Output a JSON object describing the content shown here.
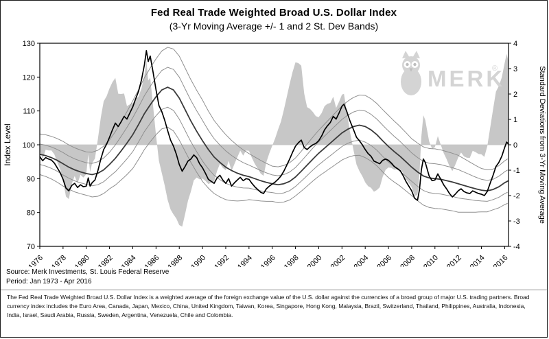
{
  "watermark": {
    "text": "MERK",
    "reg": "®"
  },
  "footer": {
    "source": "Source: Merk Investments, St. Louis Federal Reserve",
    "period": "Period: Jan 1973 - Apr 2016",
    "note": "The Fed Real Trade Weighted Broad U.S. Dollar Index is a weighted average of the foreign exchange value of the U.S. dollar against the currencies of a broad group of major U.S. trading partners. Broad currency index includes the Euro Area, Canada, Japan, Mexico, China, United Kingdom, Taiwan, Korea, Singapore, Hong Kong, Malaysia, Brazil, Switzerland, Thailand, Philippines, Australia, Indonesia, India, Israel, Saudi Arabia, Russia, Sweden, Argentina, Venezuela, Chile and Colombia."
  },
  "chart_data": {
    "type": "line",
    "title": "Fed Real Trade Weighted Broad U.S. Dollar Index",
    "subtitle": "(3-Yr Moving Average +/- 1 and 2 St. Dev Bands)",
    "left_axis": {
      "label": "Index Level",
      "min": 70,
      "max": 130,
      "ticks": [
        70,
        80,
        90,
        100,
        110,
        120,
        130
      ]
    },
    "right_axis": {
      "label": "Standard Deviations from 3-Yr Moving Average",
      "min": -4,
      "max": 4,
      "ticks": [
        -4,
        -3,
        -2,
        -1,
        0,
        1,
        2,
        3,
        4
      ]
    },
    "x_axis": {
      "min": 1976,
      "max": 2016.33,
      "ticks": [
        1976,
        1978,
        1980,
        1982,
        1984,
        1986,
        1988,
        1990,
        1992,
        1994,
        1996,
        1998,
        2000,
        2002,
        2004,
        2006,
        2008,
        2010,
        2012,
        2014,
        2016
      ]
    },
    "colors": {
      "index": "#000000",
      "moving_average": "#3a3a3a",
      "bands": "#8f8f8f",
      "deviation_fill": "#c7c7c7",
      "zero_line": "#cfcfcf",
      "watermark": "#d4d4d4"
    },
    "bands": {
      "multipliers": [
        2,
        1,
        -1,
        -2
      ]
    },
    "deviation_area": {
      "axis": "right",
      "derived": "(index - moving_average) / stdev"
    },
    "series": [
      {
        "name": "index",
        "points": [
          [
            1976.0,
            96.5
          ],
          [
            1976.25,
            95.3
          ],
          [
            1976.5,
            96.2
          ],
          [
            1976.75,
            95.8
          ],
          [
            1977.0,
            95.5
          ],
          [
            1977.25,
            94.6
          ],
          [
            1977.5,
            93.2
          ],
          [
            1977.75,
            91.8
          ],
          [
            1978.0,
            89.8
          ],
          [
            1978.25,
            87.2
          ],
          [
            1978.5,
            86.4
          ],
          [
            1978.75,
            88.0
          ],
          [
            1979.0,
            88.6
          ],
          [
            1979.25,
            87.4
          ],
          [
            1979.5,
            88.2
          ],
          [
            1979.75,
            87.6
          ],
          [
            1980.0,
            87.8
          ],
          [
            1980.17,
            90.2
          ],
          [
            1980.33,
            87.8
          ],
          [
            1980.5,
            88.8
          ],
          [
            1980.75,
            89.6
          ],
          [
            1981.0,
            92.4
          ],
          [
            1981.25,
            95.8
          ],
          [
            1981.5,
            98.6
          ],
          [
            1981.75,
            100.2
          ],
          [
            1982.0,
            102.2
          ],
          [
            1982.25,
            104.4
          ],
          [
            1982.5,
            106.4
          ],
          [
            1982.75,
            105.4
          ],
          [
            1983.0,
            106.8
          ],
          [
            1983.25,
            108.4
          ],
          [
            1983.5,
            107.6
          ],
          [
            1983.75,
            109.4
          ],
          [
            1984.0,
            111.2
          ],
          [
            1984.25,
            113.6
          ],
          [
            1984.5,
            115.8
          ],
          [
            1984.75,
            119.2
          ],
          [
            1985.0,
            123.6
          ],
          [
            1985.17,
            127.8
          ],
          [
            1985.33,
            124.6
          ],
          [
            1985.5,
            126.2
          ],
          [
            1985.75,
            121.4
          ],
          [
            1986.0,
            116.2
          ],
          [
            1986.25,
            111.6
          ],
          [
            1986.5,
            109.8
          ],
          [
            1986.75,
            107.2
          ],
          [
            1987.0,
            104.2
          ],
          [
            1987.25,
            101.4
          ],
          [
            1987.5,
            99.6
          ],
          [
            1987.75,
            97.2
          ],
          [
            1988.0,
            94.2
          ],
          [
            1988.25,
            92.2
          ],
          [
            1988.5,
            93.6
          ],
          [
            1988.75,
            95.2
          ],
          [
            1989.0,
            95.8
          ],
          [
            1989.25,
            97.0
          ],
          [
            1989.5,
            96.2
          ],
          [
            1989.75,
            94.4
          ],
          [
            1990.0,
            93.2
          ],
          [
            1990.25,
            91.6
          ],
          [
            1990.5,
            89.8
          ],
          [
            1990.75,
            89.2
          ],
          [
            1991.0,
            88.6
          ],
          [
            1991.25,
            90.2
          ],
          [
            1991.5,
            91.0
          ],
          [
            1991.75,
            89.6
          ],
          [
            1992.0,
            88.6
          ],
          [
            1992.25,
            90.0
          ],
          [
            1992.5,
            87.8
          ],
          [
            1992.75,
            88.8
          ],
          [
            1993.0,
            89.6
          ],
          [
            1993.25,
            90.4
          ],
          [
            1993.5,
            89.4
          ],
          [
            1993.75,
            90.0
          ],
          [
            1994.0,
            89.8
          ],
          [
            1994.25,
            88.6
          ],
          [
            1994.5,
            87.6
          ],
          [
            1994.75,
            86.8
          ],
          [
            1995.0,
            86.0
          ],
          [
            1995.25,
            85.6
          ],
          [
            1995.5,
            87.0
          ],
          [
            1995.75,
            87.8
          ],
          [
            1996.0,
            88.4
          ],
          [
            1996.25,
            89.0
          ],
          [
            1996.5,
            89.8
          ],
          [
            1996.75,
            90.8
          ],
          [
            1997.0,
            92.2
          ],
          [
            1997.25,
            94.0
          ],
          [
            1997.5,
            95.8
          ],
          [
            1997.75,
            97.8
          ],
          [
            1998.0,
            99.6
          ],
          [
            1998.25,
            100.6
          ],
          [
            1998.5,
            101.4
          ],
          [
            1998.75,
            99.2
          ],
          [
            1999.0,
            98.6
          ],
          [
            1999.25,
            99.4
          ],
          [
            1999.5,
            100.0
          ],
          [
            1999.75,
            100.4
          ],
          [
            2000.0,
            101.2
          ],
          [
            2000.25,
            102.6
          ],
          [
            2000.5,
            104.4
          ],
          [
            2000.75,
            105.6
          ],
          [
            2001.0,
            106.6
          ],
          [
            2001.25,
            108.4
          ],
          [
            2001.5,
            107.6
          ],
          [
            2001.75,
            109.4
          ],
          [
            2002.0,
            111.4
          ],
          [
            2002.17,
            112.0
          ],
          [
            2002.42,
            109.8
          ],
          [
            2002.67,
            107.2
          ],
          [
            2003.0,
            104.4
          ],
          [
            2003.25,
            102.2
          ],
          [
            2003.5,
            101.2
          ],
          [
            2003.75,
            100.0
          ],
          [
            2004.0,
            98.6
          ],
          [
            2004.25,
            97.4
          ],
          [
            2004.5,
            96.6
          ],
          [
            2004.75,
            95.2
          ],
          [
            2005.0,
            94.8
          ],
          [
            2005.25,
            94.4
          ],
          [
            2005.5,
            95.4
          ],
          [
            2005.75,
            95.8
          ],
          [
            2006.0,
            95.4
          ],
          [
            2006.25,
            94.6
          ],
          [
            2006.5,
            93.6
          ],
          [
            2006.75,
            93.0
          ],
          [
            2007.0,
            92.4
          ],
          [
            2007.25,
            91.0
          ],
          [
            2007.5,
            89.2
          ],
          [
            2007.75,
            87.8
          ],
          [
            2008.0,
            86.4
          ],
          [
            2008.25,
            84.2
          ],
          [
            2008.5,
            83.6
          ],
          [
            2008.67,
            86.8
          ],
          [
            2008.83,
            92.6
          ],
          [
            2009.0,
            95.8
          ],
          [
            2009.17,
            94.8
          ],
          [
            2009.33,
            92.8
          ],
          [
            2009.5,
            90.8
          ],
          [
            2009.75,
            89.4
          ],
          [
            2010.0,
            89.6
          ],
          [
            2010.25,
            91.4
          ],
          [
            2010.5,
            89.8
          ],
          [
            2010.75,
            88.2
          ],
          [
            2011.0,
            87.0
          ],
          [
            2011.25,
            85.6
          ],
          [
            2011.5,
            84.6
          ],
          [
            2011.75,
            85.4
          ],
          [
            2012.0,
            86.4
          ],
          [
            2012.25,
            87.0
          ],
          [
            2012.5,
            86.2
          ],
          [
            2012.75,
            85.8
          ],
          [
            2013.0,
            85.6
          ],
          [
            2013.25,
            86.4
          ],
          [
            2013.5,
            86.0
          ],
          [
            2013.75,
            85.6
          ],
          [
            2014.0,
            85.4
          ],
          [
            2014.25,
            85.0
          ],
          [
            2014.5,
            86.2
          ],
          [
            2014.75,
            88.6
          ],
          [
            2015.0,
            91.0
          ],
          [
            2015.25,
            93.6
          ],
          [
            2015.5,
            94.8
          ],
          [
            2015.75,
            96.6
          ],
          [
            2016.0,
            99.2
          ],
          [
            2016.17,
            100.8
          ],
          [
            2016.33,
            100.2
          ]
        ]
      },
      {
        "name": "moving_average_3yr",
        "points": [
          [
            1976.0,
            97.2
          ],
          [
            1976.5,
            96.8
          ],
          [
            1977.0,
            96.2
          ],
          [
            1977.5,
            95.4
          ],
          [
            1978.0,
            94.4
          ],
          [
            1978.5,
            93.4
          ],
          [
            1979.0,
            92.6
          ],
          [
            1979.5,
            92.0
          ],
          [
            1980.0,
            91.5
          ],
          [
            1980.5,
            91.2
          ],
          [
            1981.0,
            91.6
          ],
          [
            1981.5,
            92.6
          ],
          [
            1982.0,
            94.2
          ],
          [
            1982.5,
            96.0
          ],
          [
            1983.0,
            98.2
          ],
          [
            1983.5,
            100.5
          ],
          [
            1984.0,
            103.0
          ],
          [
            1984.5,
            106.0
          ],
          [
            1985.0,
            109.2
          ],
          [
            1985.5,
            111.8
          ],
          [
            1986.0,
            114.2
          ],
          [
            1986.5,
            116.2
          ],
          [
            1987.0,
            117.0
          ],
          [
            1987.5,
            116.2
          ],
          [
            1988.0,
            113.8
          ],
          [
            1988.5,
            110.4
          ],
          [
            1989.0,
            107.0
          ],
          [
            1989.5,
            104.0
          ],
          [
            1990.0,
            101.2
          ],
          [
            1990.5,
            98.6
          ],
          [
            1991.0,
            96.4
          ],
          [
            1991.5,
            94.8
          ],
          [
            1992.0,
            93.4
          ],
          [
            1992.5,
            92.4
          ],
          [
            1993.0,
            91.6
          ],
          [
            1993.5,
            91.0
          ],
          [
            1994.0,
            90.6
          ],
          [
            1994.5,
            90.0
          ],
          [
            1995.0,
            89.4
          ],
          [
            1995.5,
            88.9
          ],
          [
            1996.0,
            88.5
          ],
          [
            1996.5,
            88.2
          ],
          [
            1997.0,
            88.5
          ],
          [
            1997.5,
            89.2
          ],
          [
            1998.0,
            90.5
          ],
          [
            1998.5,
            92.2
          ],
          [
            1999.0,
            94.0
          ],
          [
            1999.5,
            95.8
          ],
          [
            2000.0,
            97.5
          ],
          [
            2000.5,
            99.0
          ],
          [
            2001.0,
            100.5
          ],
          [
            2001.5,
            102.0
          ],
          [
            2002.0,
            103.5
          ],
          [
            2002.5,
            104.6
          ],
          [
            2003.0,
            105.4
          ],
          [
            2003.5,
            105.8
          ],
          [
            2004.0,
            105.4
          ],
          [
            2004.5,
            104.4
          ],
          [
            2005.0,
            103.0
          ],
          [
            2005.5,
            101.2
          ],
          [
            2006.0,
            99.5
          ],
          [
            2006.5,
            98.0
          ],
          [
            2007.0,
            96.6
          ],
          [
            2007.5,
            95.0
          ],
          [
            2008.0,
            93.4
          ],
          [
            2008.5,
            92.0
          ],
          [
            2009.0,
            90.8
          ],
          [
            2009.5,
            90.2
          ],
          [
            2010.0,
            90.0
          ],
          [
            2010.5,
            89.8
          ],
          [
            2011.0,
            89.4
          ],
          [
            2011.5,
            89.0
          ],
          [
            2012.0,
            88.5
          ],
          [
            2012.5,
            88.0
          ],
          [
            2013.0,
            87.5
          ],
          [
            2013.5,
            87.0
          ],
          [
            2014.0,
            86.6
          ],
          [
            2014.5,
            86.4
          ],
          [
            2015.0,
            86.8
          ],
          [
            2015.5,
            87.6
          ],
          [
            2016.0,
            88.8
          ],
          [
            2016.33,
            89.4
          ]
        ]
      },
      {
        "name": "stdev_3yr",
        "points": [
          [
            1976,
            3.0
          ],
          [
            1978,
            3.3
          ],
          [
            1980,
            3.2
          ],
          [
            1982,
            3.6
          ],
          [
            1984,
            5.0
          ],
          [
            1986,
            5.6
          ],
          [
            1988,
            6.2
          ],
          [
            1990,
            6.0
          ],
          [
            1992,
            4.8
          ],
          [
            1994,
            3.4
          ],
          [
            1996,
            2.6
          ],
          [
            1998,
            2.8
          ],
          [
            2000,
            3.4
          ],
          [
            2002,
            4.0
          ],
          [
            2004,
            4.6
          ],
          [
            2006,
            4.6
          ],
          [
            2008,
            4.2
          ],
          [
            2010,
            4.4
          ],
          [
            2012,
            4.2
          ],
          [
            2014,
            3.2
          ],
          [
            2015,
            3.0
          ],
          [
            2016.33,
            3.3
          ]
        ]
      }
    ]
  }
}
